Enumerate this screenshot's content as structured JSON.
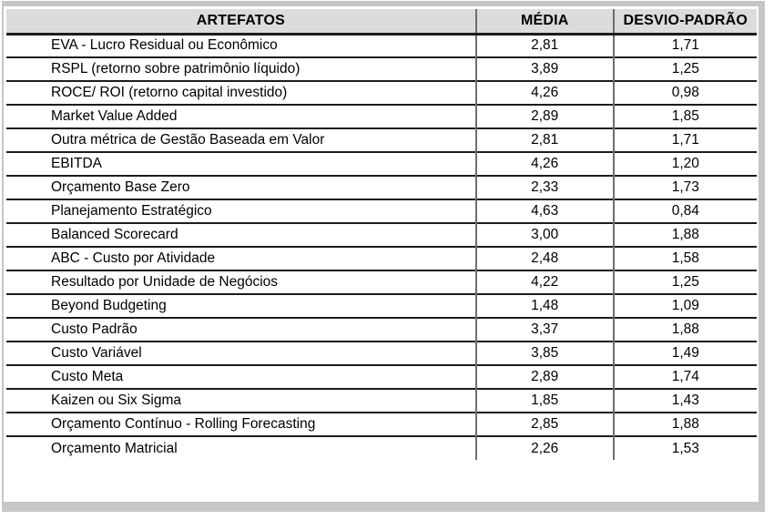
{
  "colors": {
    "header_bg": "#dcdcdc",
    "frame_gray": "#c6c6c6",
    "row_line": "#1c1c1c",
    "column_line": "#6e6e6e",
    "text": "#000000",
    "background": "#ffffff"
  },
  "table": {
    "columns": [
      {
        "key": "artefato",
        "label": "ARTEFATOS"
      },
      {
        "key": "media",
        "label": "MÉDIA"
      },
      {
        "key": "desvio",
        "label": "DESVIO-PADRÃO"
      }
    ],
    "rows": [
      {
        "artefato": "EVA - Lucro Residual ou Econômico",
        "media": "2,81",
        "desvio": "1,71"
      },
      {
        "artefato": "RSPL (retorno sobre patrimônio líquido)",
        "media": "3,89",
        "desvio": "1,25"
      },
      {
        "artefato": "ROCE/ ROI (retorno capital investido)",
        "media": "4,26",
        "desvio": "0,98"
      },
      {
        "artefato": "Market Value Added",
        "media": "2,89",
        "desvio": "1,85"
      },
      {
        "artefato": "Outra métrica de Gestão Baseada em Valor",
        "media": "2,81",
        "desvio": "1,71"
      },
      {
        "artefato": "EBITDA",
        "media": "4,26",
        "desvio": "1,20"
      },
      {
        "artefato": "Orçamento Base Zero",
        "media": "2,33",
        "desvio": "1,73"
      },
      {
        "artefato": "Planejamento Estratégico",
        "media": "4,63",
        "desvio": "0,84"
      },
      {
        "artefato": "Balanced Scorecard",
        "media": "3,00",
        "desvio": "1,88"
      },
      {
        "artefato": "ABC - Custo por Atividade",
        "media": "2,48",
        "desvio": "1,58"
      },
      {
        "artefato": "Resultado por Unidade de Negócios",
        "media": "4,22",
        "desvio": "1,25"
      },
      {
        "artefato": "Beyond Budgeting",
        "media": "1,48",
        "desvio": "1,09"
      },
      {
        "artefato": "Custo Padrão",
        "media": "3,37",
        "desvio": "1,88"
      },
      {
        "artefato": "Custo Variável",
        "media": "3,85",
        "desvio": "1,49"
      },
      {
        "artefato": "Custo Meta",
        "media": "2,89",
        "desvio": "1,74"
      },
      {
        "artefato": "Kaizen ou Six Sigma",
        "media": "1,85",
        "desvio": "1,43"
      },
      {
        "artefato": "Orçamento Contínuo - Rolling Forecasting",
        "media": "2,85",
        "desvio": "1,88"
      },
      {
        "artefato": "Orçamento Matricial",
        "media": "2,26",
        "desvio": "1,53"
      }
    ]
  },
  "chart_data": {
    "type": "table",
    "title": "",
    "columns": [
      "ARTEFATOS",
      "MÉDIA",
      "DESVIO-PADRÃO"
    ],
    "categories": [
      "EVA - Lucro Residual ou Econômico",
      "RSPL (retorno sobre patrimônio líquido)",
      "ROCE/ ROI (retorno capital investido)",
      "Market Value Added",
      "Outra métrica de Gestão Baseada em Valor",
      "EBITDA",
      "Orçamento Base Zero",
      "Planejamento Estratégico",
      "Balanced Scorecard",
      "ABC - Custo por Atividade",
      "Resultado por Unidade de Negócios",
      "Beyond Budgeting",
      "Custo Padrão",
      "Custo Variável",
      "Custo Meta",
      "Kaizen ou Six Sigma",
      "Orçamento Contínuo - Rolling Forecasting",
      "Orçamento Matricial"
    ],
    "series": [
      {
        "name": "MÉDIA",
        "values": [
          2.81,
          3.89,
          4.26,
          2.89,
          2.81,
          4.26,
          2.33,
          4.63,
          3.0,
          2.48,
          4.22,
          1.48,
          3.37,
          3.85,
          2.89,
          1.85,
          2.85,
          2.26
        ]
      },
      {
        "name": "DESVIO-PADRÃO",
        "values": [
          1.71,
          1.25,
          0.98,
          1.85,
          1.71,
          1.2,
          1.73,
          0.84,
          1.88,
          1.58,
          1.25,
          1.09,
          1.88,
          1.49,
          1.74,
          1.43,
          1.88,
          1.53
        ]
      }
    ]
  }
}
